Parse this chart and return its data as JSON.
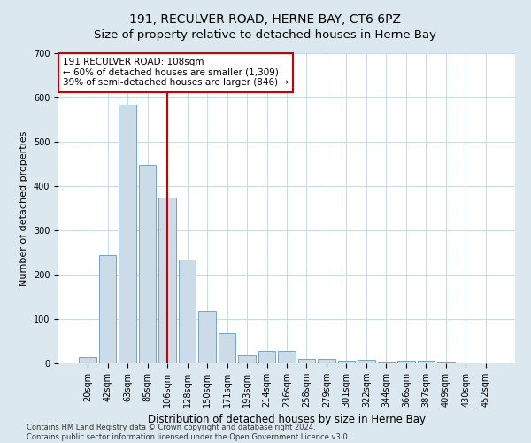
{
  "title": "191, RECULVER ROAD, HERNE BAY, CT6 6PZ",
  "subtitle": "Size of property relative to detached houses in Herne Bay",
  "xlabel": "Distribution of detached houses by size in Herne Bay",
  "ylabel": "Number of detached properties",
  "categories": [
    "20sqm",
    "42sqm",
    "63sqm",
    "85sqm",
    "106sqm",
    "128sqm",
    "150sqm",
    "171sqm",
    "193sqm",
    "214sqm",
    "236sqm",
    "258sqm",
    "279sqm",
    "301sqm",
    "322sqm",
    "344sqm",
    "366sqm",
    "387sqm",
    "409sqm",
    "430sqm",
    "452sqm"
  ],
  "values": [
    15,
    245,
    585,
    448,
    375,
    235,
    118,
    68,
    18,
    28,
    28,
    10,
    10,
    5,
    8,
    2,
    5,
    5,
    2,
    1,
    0
  ],
  "bar_color": "#ccdbe8",
  "bar_edge_color": "#6699bb",
  "vline_index": 4,
  "vline_color": "#cc0000",
  "annotation_text": "191 RECULVER ROAD: 108sqm\n← 60% of detached houses are smaller (1,309)\n39% of semi-detached houses are larger (846) →",
  "annotation_box_facecolor": "#ffffff",
  "annotation_box_edge": "#cc0000",
  "ylim": [
    0,
    700
  ],
  "yticks": [
    0,
    100,
    200,
    300,
    400,
    500,
    600,
    700
  ],
  "footer_text": "Contains HM Land Registry data © Crown copyright and database right 2024.\nContains public sector information licensed under the Open Government Licence v3.0.",
  "fig_background_color": "#dce8f0",
  "plot_background": "#ffffff",
  "title_fontsize": 10,
  "tick_fontsize": 7,
  "ylabel_fontsize": 8,
  "xlabel_fontsize": 8.5,
  "ann_fontsize": 7.5,
  "footer_fontsize": 6
}
